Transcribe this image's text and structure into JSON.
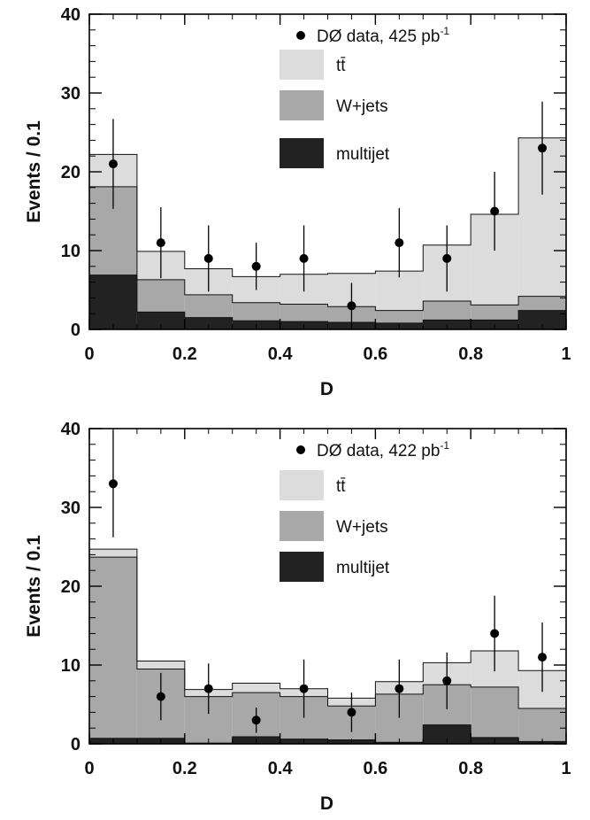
{
  "chart_data": [
    {
      "type": "bar",
      "stacked": true,
      "xlabel": "D",
      "ylabel": "Events / 0.1",
      "xlim": [
        0,
        1
      ],
      "ylim": [
        0,
        40
      ],
      "x_ticks": [
        "0",
        "0.2",
        "0.4",
        "0.6",
        "0.8",
        "1"
      ],
      "y_ticks": [
        "0",
        "10",
        "20",
        "30",
        "40"
      ],
      "bin_edges": [
        0,
        0.1,
        0.2,
        0.3,
        0.4,
        0.5,
        0.6,
        0.7,
        0.8,
        0.9,
        1.0
      ],
      "legend_position": "top-right",
      "data_label": "DØ data, 425 pb",
      "data_label_sup": "-1",
      "series": [
        {
          "name": "multijet",
          "color": "#222222",
          "values": [
            6.9,
            2.2,
            1.5,
            1.1,
            1.0,
            0.9,
            0.8,
            1.2,
            1.2,
            2.4
          ]
        },
        {
          "name": "W+jets",
          "color": "#a8a8a8",
          "values": [
            11.2,
            4.1,
            2.9,
            2.3,
            2.2,
            2.0,
            1.6,
            2.4,
            1.9,
            1.8
          ]
        },
        {
          "name": "tt̄",
          "color": "#dcdcdc",
          "values": [
            4.1,
            3.6,
            3.3,
            3.3,
            3.8,
            4.2,
            5.0,
            7.1,
            11.5,
            20.1
          ]
        }
      ],
      "data_points": {
        "x": [
          0.05,
          0.15,
          0.25,
          0.35,
          0.45,
          0.55,
          0.65,
          0.75,
          0.85,
          0.95
        ],
        "y": [
          21,
          11,
          9,
          8,
          9,
          3,
          11,
          9,
          15,
          23
        ],
        "err": [
          5.7,
          4.5,
          4.2,
          3.0,
          4.2,
          2.9,
          4.4,
          4.2,
          5.0,
          5.9
        ]
      }
    },
    {
      "type": "bar",
      "stacked": true,
      "xlabel": "D",
      "ylabel": "Events / 0.1",
      "xlim": [
        0,
        1
      ],
      "ylim": [
        0,
        40
      ],
      "x_ticks": [
        "0",
        "0.2",
        "0.4",
        "0.6",
        "0.8",
        "1"
      ],
      "y_ticks": [
        "0",
        "10",
        "20",
        "30",
        "40"
      ],
      "bin_edges": [
        0,
        0.1,
        0.2,
        0.3,
        0.4,
        0.5,
        0.6,
        0.7,
        0.8,
        0.9,
        1.0
      ],
      "legend_position": "top-right",
      "data_label": "DØ data, 422 pb",
      "data_label_sup": "-1",
      "series": [
        {
          "name": "multijet",
          "color": "#222222",
          "values": [
            0.7,
            0.7,
            0.1,
            0.9,
            0.6,
            0.5,
            0.2,
            2.4,
            0.8,
            0.3
          ]
        },
        {
          "name": "W+jets",
          "color": "#a8a8a8",
          "values": [
            23.0,
            8.8,
            5.9,
            5.6,
            5.4,
            4.3,
            6.1,
            5.1,
            6.4,
            4.2
          ]
        },
        {
          "name": "tt̄",
          "color": "#dcdcdc",
          "values": [
            1.0,
            1.0,
            0.9,
            1.2,
            1.0,
            1.0,
            1.6,
            2.8,
            4.6,
            4.8
          ]
        }
      ],
      "data_points": {
        "x": [
          0.05,
          0.15,
          0.25,
          0.35,
          0.45,
          0.55,
          0.65,
          0.75,
          0.85,
          0.95
        ],
        "y": [
          33,
          6,
          7,
          3,
          7,
          4,
          7,
          8,
          14,
          11
        ],
        "err": [
          6.8,
          3.0,
          3.2,
          1.6,
          3.7,
          2.5,
          3.7,
          3.6,
          4.8,
          4.4
        ]
      }
    }
  ]
}
